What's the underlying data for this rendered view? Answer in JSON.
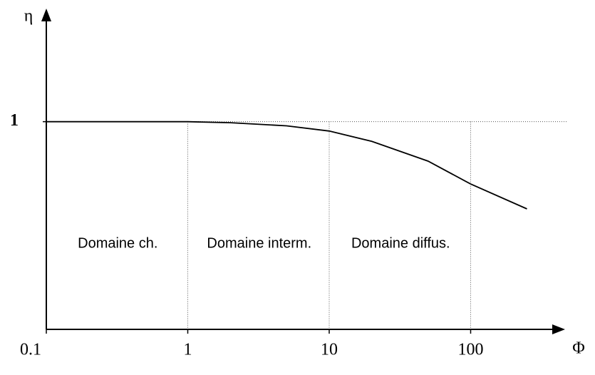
{
  "chart_data": {
    "type": "line",
    "x_label": "Φ",
    "y_label": "η",
    "x": [
      0.1,
      1,
      2,
      5,
      10,
      20,
      50,
      100,
      250
    ],
    "values": [
      1,
      1,
      0.995,
      0.98,
      0.955,
      0.905,
      0.81,
      0.7,
      0.58
    ],
    "color": "#000000",
    "xscale": "log",
    "xlim": [
      0.1,
      400
    ],
    "xticks": [
      0.1,
      1,
      10,
      100
    ],
    "ylim": [
      0,
      1.5
    ],
    "yticks": [
      1
    ],
    "grid": true,
    "annotations": [
      {
        "text": "Domaine ch.",
        "x": 0.32
      },
      {
        "text": "Domaine interm.",
        "x": 3.2
      },
      {
        "text": "Domaine diffus.",
        "x": 32
      }
    ]
  }
}
